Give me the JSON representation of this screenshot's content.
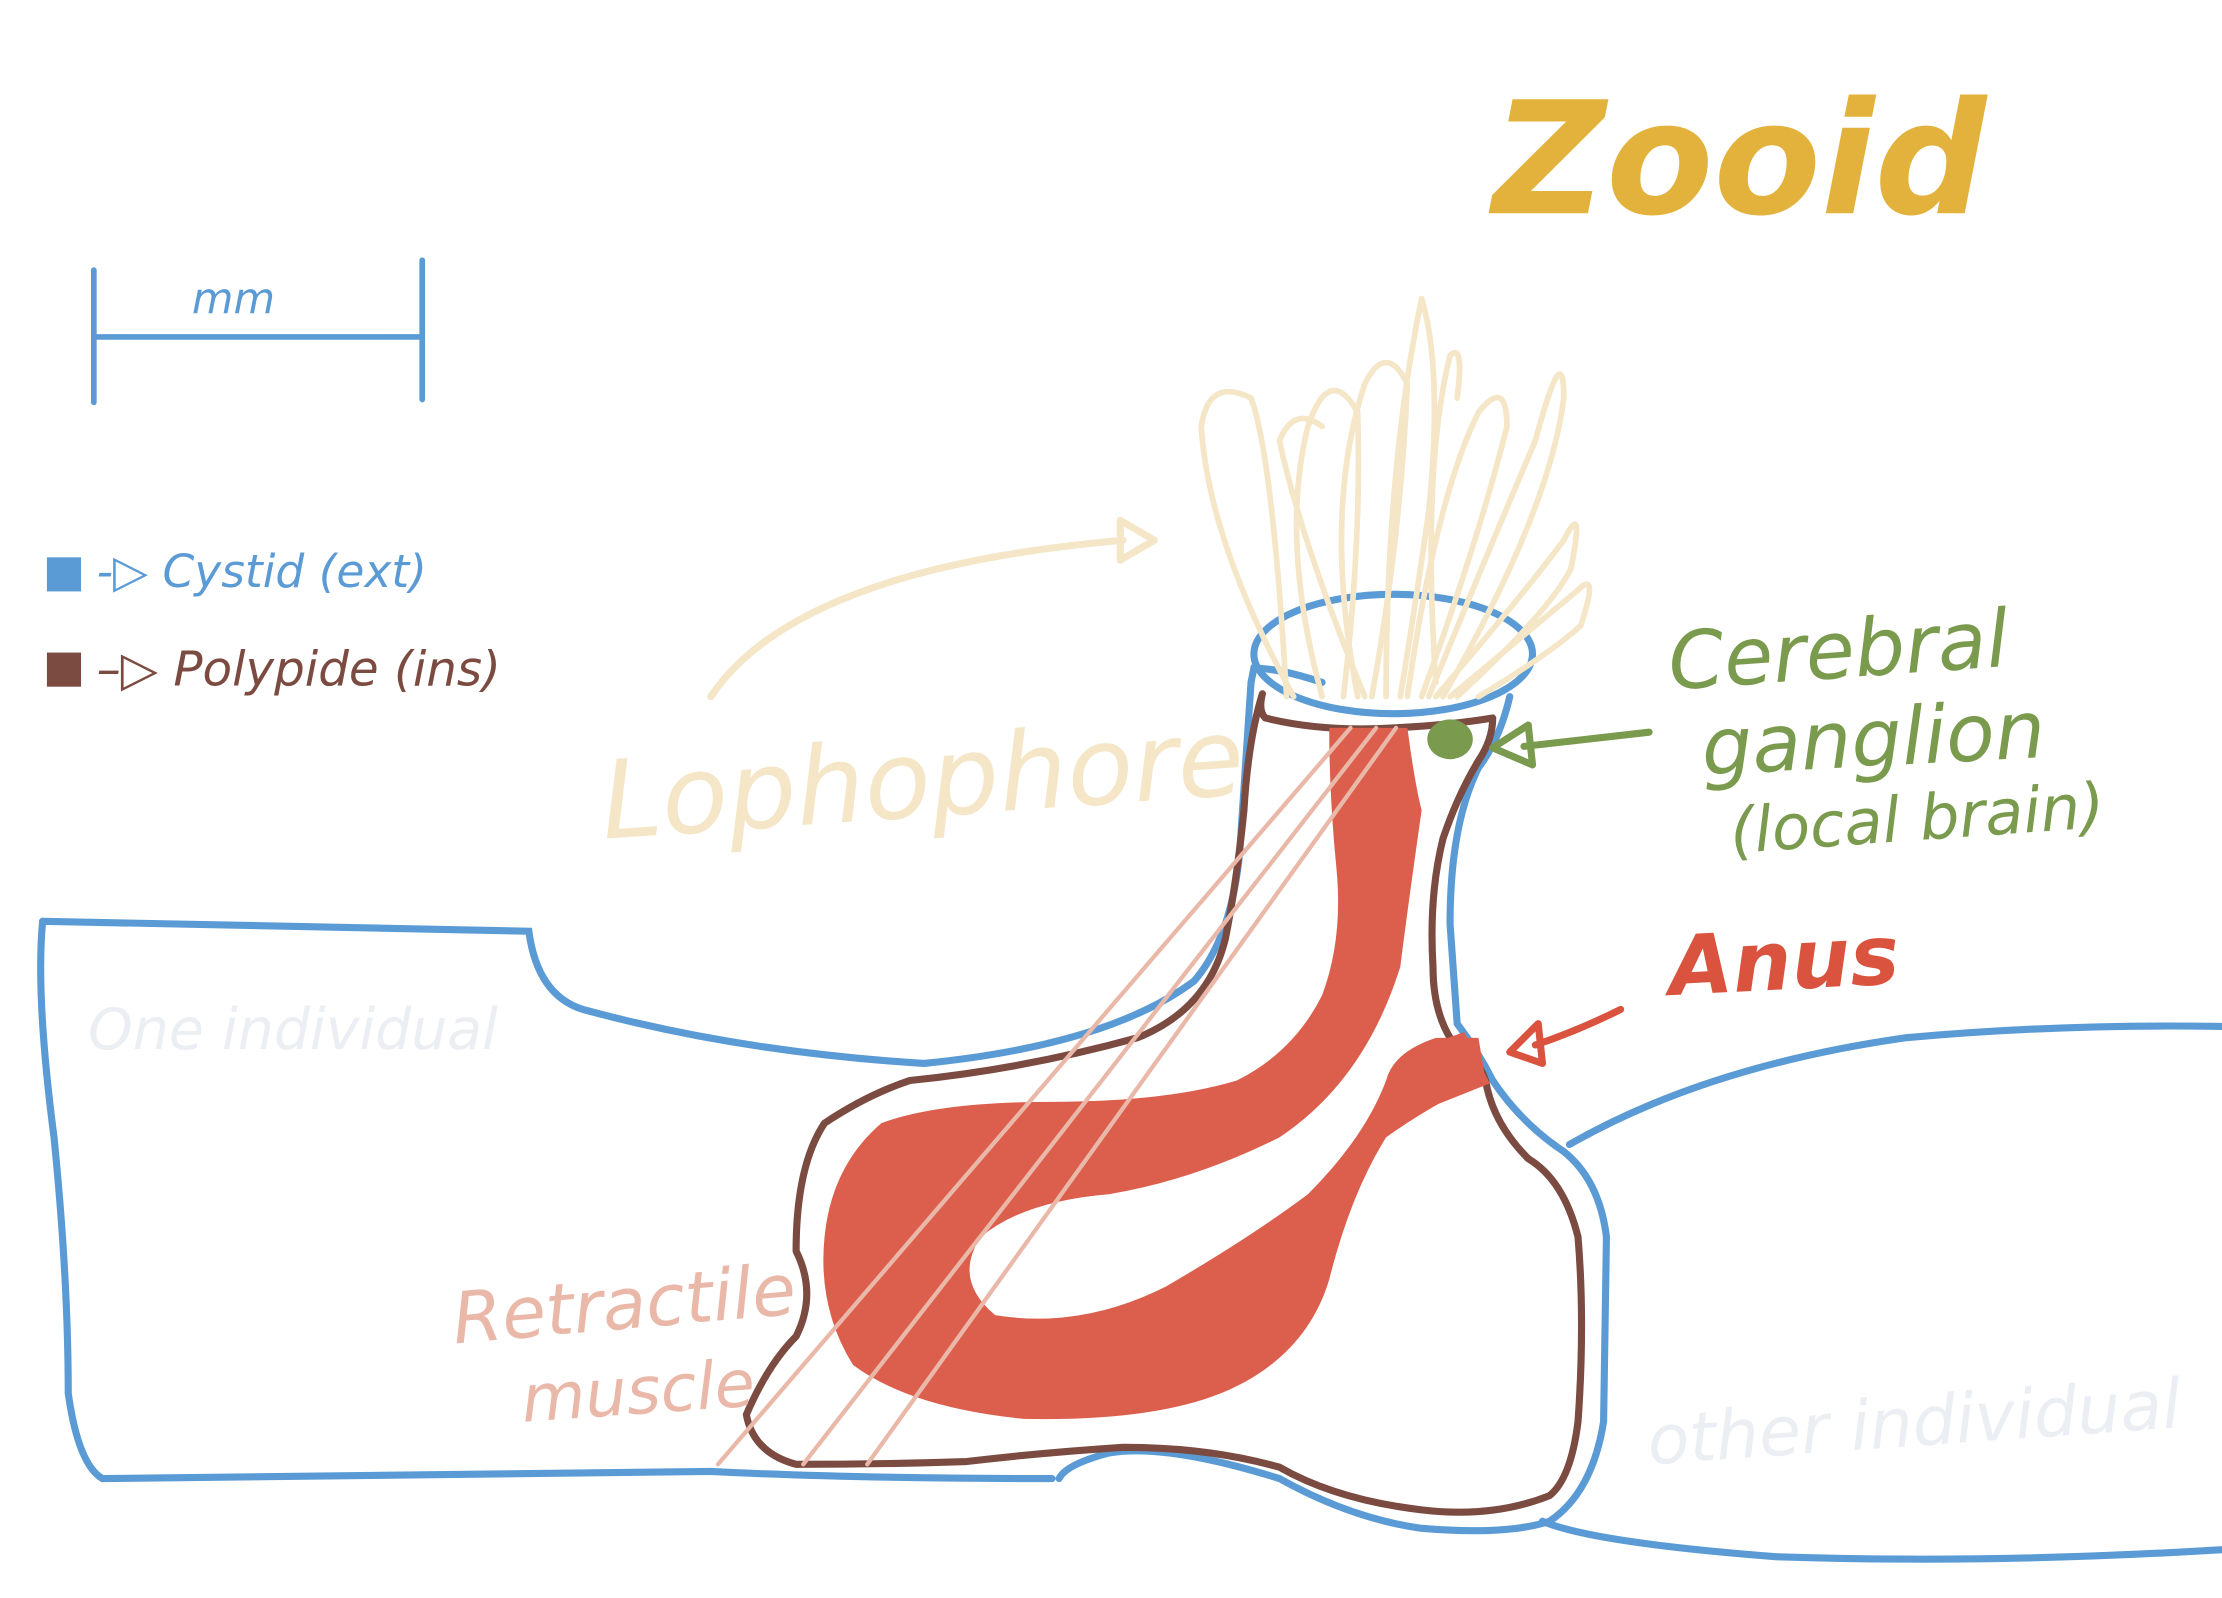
{
  "title": "Zooid",
  "scale_bar": {
    "label": "mm"
  },
  "legend": {
    "items": [
      {
        "label": "-▷ Cystid (ext)",
        "color": "#5b9bd5"
      },
      {
        "label": "–▷ Polypide (ins)",
        "color": "#7b4a40"
      }
    ]
  },
  "labels": {
    "lophophore": "Lophophore",
    "cerebral_ganglion_line1": "Cerebral",
    "cerebral_ganglion_line2": "ganglion",
    "cerebral_ganglion_line3": "(local brain)",
    "anus": "Anus",
    "retractile_muscle_line1": "Retractile",
    "retractile_muscle_line2": "muscle",
    "one_individual": "One individual",
    "other_individual": "other individual"
  },
  "colors": {
    "title": "#e3b23c",
    "cystid": "#5b9bd5",
    "polypide": "#7b4a40",
    "gut": "#dc5f4e",
    "lophophore": "#f4e6c6",
    "ganglion": "#7a9a4e",
    "anus_label": "#d9533e",
    "muscle": "#eab8a8",
    "faint_label": "#ebeef3"
  }
}
